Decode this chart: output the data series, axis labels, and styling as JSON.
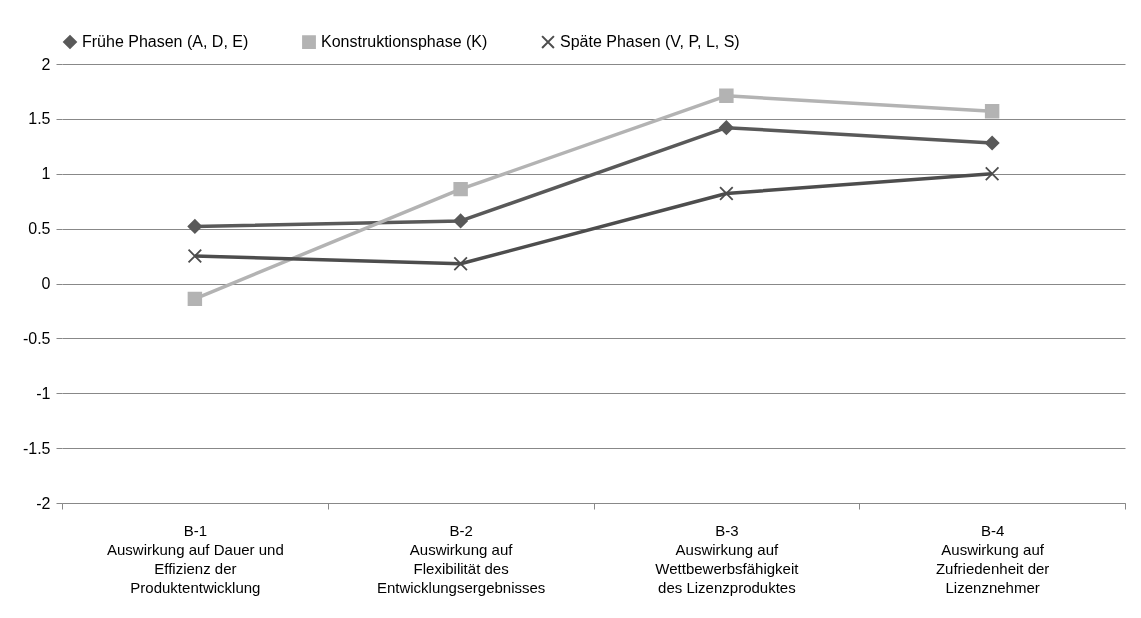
{
  "chart_data": {
    "type": "line",
    "categories": [
      "B-1\nAuswirkung auf Dauer und\nEffizienz der\nProduktentwicklung",
      "B-2\nAuswirkung auf\nFlexibilität des\nEntwicklungsergebnisses",
      "B-3\nAuswirkung auf\nWettbewerbsfähigkeit\ndes Lizenzproduktes",
      "B-4\nAuswirkung auf\nZufriedenheit der\nLizenznehmer"
    ],
    "series": [
      {
        "name": "Frühe Phasen (A, D, E)",
        "color": "#595959",
        "marker": "diamond",
        "values": [
          0.52,
          0.57,
          1.42,
          1.28
        ]
      },
      {
        "name": "Konstruktionsphase (K)",
        "color": "#b3b3b3",
        "marker": "square",
        "values": [
          -0.14,
          0.86,
          1.71,
          1.57
        ]
      },
      {
        "name": "Späte Phasen (V, P, L, S)",
        "color": "#4d4d4d",
        "marker": "cross",
        "values": [
          0.25,
          0.18,
          0.82,
          1.0
        ]
      }
    ],
    "ylim": [
      -2,
      2
    ],
    "yticks": [
      -2,
      -1.5,
      -1,
      -0.5,
      0,
      0.5,
      1,
      1.5,
      2
    ],
    "grid": "y",
    "legend": "top"
  }
}
